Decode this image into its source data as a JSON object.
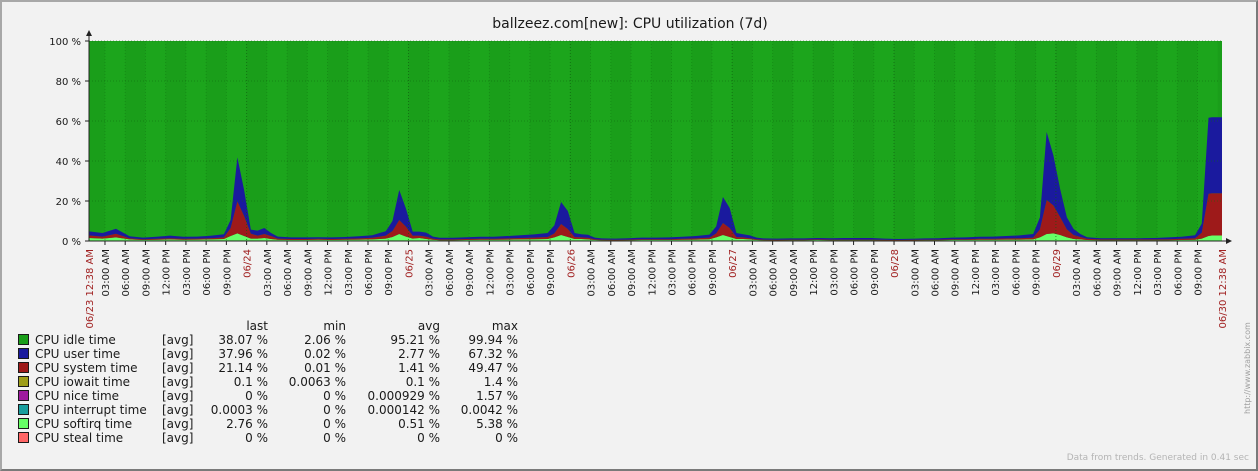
{
  "title": "ballzeez.com[new]: CPU utilization (7d)",
  "legend_headers": {
    "last": "last",
    "min": "min",
    "avg": "avg",
    "max": "max"
  },
  "legend": [
    {
      "name": "CPU idle time",
      "func": "[avg]",
      "last": "38.07 %",
      "min": "2.06 %",
      "avg": "95.21 %",
      "max": "99.94 %",
      "color": "#1a9e1a"
    },
    {
      "name": "CPU user time",
      "func": "[avg]",
      "last": "37.96 %",
      "min": "0.02 %",
      "avg": "2.77 %",
      "max": "67.32 %",
      "color": "#1a1a9e"
    },
    {
      "name": "CPU system time",
      "func": "[avg]",
      "last": "21.14 %",
      "min": "0.01 %",
      "avg": "1.41 %",
      "max": "49.47 %",
      "color": "#9e1a1a"
    },
    {
      "name": "CPU iowait time",
      "func": "[avg]",
      "last": "0.1 %",
      "min": "0.0063 %",
      "avg": "0.1 %",
      "max": "1.4 %",
      "color": "#9e9e1a"
    },
    {
      "name": "CPU nice time",
      "func": "[avg]",
      "last": "0 %",
      "min": "0 %",
      "avg": "0.000929 %",
      "max": "1.57 %",
      "color": "#9e1a9e"
    },
    {
      "name": "CPU interrupt time",
      "func": "[avg]",
      "last": "0.0003 %",
      "min": "0 %",
      "avg": "0.000142 %",
      "max": "0.0042 %",
      "color": "#1a9e9e"
    },
    {
      "name": "CPU softirq time",
      "func": "[avg]",
      "last": "2.76 %",
      "min": "0 %",
      "avg": "0.51 %",
      "max": "5.38 %",
      "color": "#66ff66"
    },
    {
      "name": "CPU steal time",
      "func": "[avg]",
      "last": "0 %",
      "min": "0 %",
      "avg": "0 %",
      "max": "0 %",
      "color": "#ff6666"
    }
  ],
  "footer": "Data from trends. Generated in 0.41 sec",
  "watermark": "http://www.zabbix.com",
  "chart_data": {
    "type": "area",
    "stacked": true,
    "title": "ballzeez.com[new]: CPU utilization (7d)",
    "ylim": [
      0,
      100
    ],
    "yticks": [
      "0 %",
      "20 %",
      "40 %",
      "60 %",
      "80 %",
      "100 %"
    ],
    "x_range": [
      "06/23 00:38",
      "06/30 00:38"
    ],
    "x_start_label": "06/23 12:38 AM",
    "x_end_label": "06/30 12:38 AM",
    "x_ticks": [
      {
        "hours": 2.37,
        "label": "03:00 AM"
      },
      {
        "hours": 5.37,
        "label": "06:00 AM"
      },
      {
        "hours": 8.37,
        "label": "09:00 AM"
      },
      {
        "hours": 11.37,
        "label": "12:00 PM"
      },
      {
        "hours": 14.37,
        "label": "03:00 PM"
      },
      {
        "hours": 17.37,
        "label": "06:00 PM"
      },
      {
        "hours": 20.37,
        "label": "09:00 PM"
      },
      {
        "hours": 23.37,
        "label": "06/24",
        "major": true
      },
      {
        "hours": 26.37,
        "label": "03:00 AM"
      },
      {
        "hours": 29.37,
        "label": "06:00 AM"
      },
      {
        "hours": 32.37,
        "label": "09:00 AM"
      },
      {
        "hours": 35.37,
        "label": "12:00 PM"
      },
      {
        "hours": 38.37,
        "label": "03:00 PM"
      },
      {
        "hours": 41.37,
        "label": "06:00 PM"
      },
      {
        "hours": 44.37,
        "label": "09:00 PM"
      },
      {
        "hours": 47.37,
        "label": "06/25",
        "major": true
      },
      {
        "hours": 50.37,
        "label": "03:00 AM"
      },
      {
        "hours": 53.37,
        "label": "06:00 AM"
      },
      {
        "hours": 56.37,
        "label": "09:00 AM"
      },
      {
        "hours": 59.37,
        "label": "12:00 PM"
      },
      {
        "hours": 62.37,
        "label": "03:00 PM"
      },
      {
        "hours": 65.37,
        "label": "06:00 PM"
      },
      {
        "hours": 68.37,
        "label": "09:00 PM"
      },
      {
        "hours": 71.37,
        "label": "06/26",
        "major": true
      },
      {
        "hours": 74.37,
        "label": "03:00 AM"
      },
      {
        "hours": 77.37,
        "label": "06:00 AM"
      },
      {
        "hours": 80.37,
        "label": "09:00 AM"
      },
      {
        "hours": 83.37,
        "label": "12:00 PM"
      },
      {
        "hours": 86.37,
        "label": "03:00 PM"
      },
      {
        "hours": 89.37,
        "label": "06:00 PM"
      },
      {
        "hours": 92.37,
        "label": "09:00 PM"
      },
      {
        "hours": 95.37,
        "label": "06/27",
        "major": true
      },
      {
        "hours": 98.37,
        "label": "03:00 AM"
      },
      {
        "hours": 101.37,
        "label": "06:00 AM"
      },
      {
        "hours": 104.37,
        "label": "09:00 AM"
      },
      {
        "hours": 107.37,
        "label": "12:00 PM"
      },
      {
        "hours": 110.37,
        "label": "03:00 PM"
      },
      {
        "hours": 113.37,
        "label": "06:00 PM"
      },
      {
        "hours": 116.37,
        "label": "09:00 PM"
      },
      {
        "hours": 119.37,
        "label": "06/28",
        "major": true
      },
      {
        "hours": 122.37,
        "label": "03:00 AM"
      },
      {
        "hours": 125.37,
        "label": "06:00 AM"
      },
      {
        "hours": 128.37,
        "label": "09:00 AM"
      },
      {
        "hours": 131.37,
        "label": "12:00 PM"
      },
      {
        "hours": 134.37,
        "label": "03:00 PM"
      },
      {
        "hours": 137.37,
        "label": "06:00 PM"
      },
      {
        "hours": 140.37,
        "label": "09:00 PM"
      },
      {
        "hours": 143.37,
        "label": "06/29",
        "major": true
      },
      {
        "hours": 146.37,
        "label": "03:00 AM"
      },
      {
        "hours": 149.37,
        "label": "06:00 AM"
      },
      {
        "hours": 152.37,
        "label": "09:00 AM"
      },
      {
        "hours": 155.37,
        "label": "12:00 PM"
      },
      {
        "hours": 158.37,
        "label": "03:00 PM"
      },
      {
        "hours": 161.37,
        "label": "06:00 PM"
      },
      {
        "hours": 164.37,
        "label": "09:00 PM"
      }
    ],
    "series_x_hours": [
      0,
      2,
      4,
      6,
      8,
      10,
      12,
      14,
      16,
      18,
      20,
      21,
      22,
      23,
      24,
      25,
      26,
      27,
      28,
      30,
      32,
      34,
      36,
      38,
      40,
      42,
      44,
      45,
      46,
      47,
      48,
      49,
      50,
      51,
      52,
      54,
      56,
      58,
      60,
      62,
      64,
      66,
      68,
      69,
      70,
      71,
      72,
      73,
      74,
      75,
      76,
      78,
      80,
      82,
      84,
      86,
      88,
      90,
      92,
      93,
      94,
      95,
      96,
      97,
      98,
      99,
      100,
      102,
      104,
      106,
      108,
      110,
      112,
      114,
      116,
      118,
      120,
      122,
      124,
      126,
      128,
      130,
      132,
      134,
      136,
      138,
      140,
      141,
      142,
      143,
      144,
      145,
      146,
      147,
      148,
      150,
      152,
      154,
      156,
      158,
      160,
      162,
      164,
      165,
      166,
      166.5,
      168
    ],
    "series": [
      {
        "name": "CPU softirq time",
        "values": [
          1.5,
          1.2,
          1.8,
          0.8,
          0.5,
          0.6,
          0.8,
          0.6,
          0.7,
          0.8,
          1.0,
          2.5,
          3.8,
          2.5,
          1.2,
          1.2,
          1.5,
          1.0,
          0.6,
          0.5,
          0.5,
          0.6,
          0.5,
          0.6,
          0.7,
          0.8,
          1.2,
          2.0,
          3.5,
          2.2,
          1.2,
          1.5,
          1.0,
          0.6,
          0.4,
          0.4,
          0.5,
          0.6,
          0.6,
          0.7,
          0.8,
          0.9,
          1.0,
          1.8,
          3.0,
          2.0,
          1.0,
          1.0,
          0.8,
          0.5,
          0.4,
          0.3,
          0.4,
          0.5,
          0.5,
          0.5,
          0.6,
          0.7,
          0.9,
          1.8,
          3.0,
          2.0,
          1.0,
          1.0,
          0.8,
          0.5,
          0.4,
          0.3,
          0.4,
          0.4,
          0.5,
          0.4,
          0.4,
          0.4,
          0.4,
          0.3,
          0.3,
          0.3,
          0.4,
          0.4,
          0.5,
          0.5,
          0.6,
          0.6,
          0.7,
          0.7,
          0.8,
          1.8,
          3.5,
          3.8,
          3.0,
          1.8,
          1.0,
          0.8,
          0.5,
          0.4,
          0.4,
          0.4,
          0.4,
          0.4,
          0.4,
          0.5,
          0.6,
          1.2,
          2.5,
          2.76,
          2.76
        ]
      },
      {
        "name": "CPU system time",
        "values": [
          1.3,
          1.0,
          1.8,
          0.6,
          0.4,
          0.5,
          0.6,
          0.5,
          0.5,
          0.6,
          0.8,
          4.0,
          16.0,
          10.0,
          2.5,
          1.5,
          2.0,
          1.5,
          0.6,
          0.5,
          0.5,
          0.5,
          0.5,
          0.5,
          0.6,
          0.8,
          1.5,
          3.0,
          7.0,
          5.0,
          1.5,
          1.2,
          1.2,
          0.6,
          0.4,
          0.4,
          0.5,
          0.5,
          0.5,
          0.6,
          0.7,
          0.8,
          1.0,
          2.0,
          5.5,
          4.0,
          1.0,
          0.8,
          0.8,
          0.4,
          0.3,
          0.3,
          0.3,
          0.4,
          0.4,
          0.4,
          0.5,
          0.6,
          0.8,
          2.0,
          6.0,
          4.5,
          1.0,
          0.8,
          0.6,
          0.4,
          0.3,
          0.3,
          0.3,
          0.3,
          0.3,
          0.3,
          0.3,
          0.3,
          0.3,
          0.3,
          0.2,
          0.3,
          0.3,
          0.3,
          0.4,
          0.4,
          0.5,
          0.5,
          0.6,
          0.7,
          0.9,
          4.0,
          17.0,
          14.0,
          9.0,
          4.0,
          2.0,
          1.2,
          0.6,
          0.4,
          0.4,
          0.4,
          0.4,
          0.4,
          0.5,
          0.6,
          0.8,
          3.0,
          21.14,
          21.14,
          21.14
        ]
      },
      {
        "name": "CPU user time",
        "values": [
          2.0,
          1.8,
          2.5,
          1.0,
          0.8,
          1.0,
          1.3,
          1.0,
          1.0,
          1.2,
          1.6,
          4.0,
          22.0,
          13.0,
          2.0,
          2.5,
          3.0,
          1.5,
          1.0,
          0.8,
          0.8,
          0.8,
          0.8,
          0.9,
          1.1,
          1.3,
          2.2,
          5.0,
          15.0,
          9.0,
          2.0,
          2.0,
          2.0,
          1.0,
          0.8,
          0.8,
          0.9,
          1.0,
          1.0,
          1.2,
          1.4,
          1.6,
          2.0,
          4.0,
          11.0,
          9.0,
          2.0,
          1.6,
          1.5,
          0.8,
          0.6,
          0.6,
          0.7,
          0.8,
          0.8,
          0.9,
          1.0,
          1.2,
          1.5,
          3.5,
          13.0,
          10.0,
          2.0,
          1.6,
          1.4,
          0.8,
          0.6,
          0.6,
          0.6,
          0.6,
          0.7,
          0.7,
          0.8,
          0.8,
          0.8,
          0.6,
          0.5,
          0.5,
          0.6,
          0.7,
          0.8,
          0.9,
          1.0,
          1.1,
          1.2,
          1.4,
          1.8,
          6.0,
          34.0,
          25.0,
          14.0,
          6.0,
          3.0,
          1.5,
          0.8,
          0.6,
          0.6,
          0.6,
          0.6,
          0.7,
          0.9,
          1.0,
          1.5,
          4.5,
          37.96,
          37.96,
          37.96
        ]
      },
      {
        "name": "CPU idle time",
        "note": "fills remainder to 100 %"
      }
    ]
  }
}
